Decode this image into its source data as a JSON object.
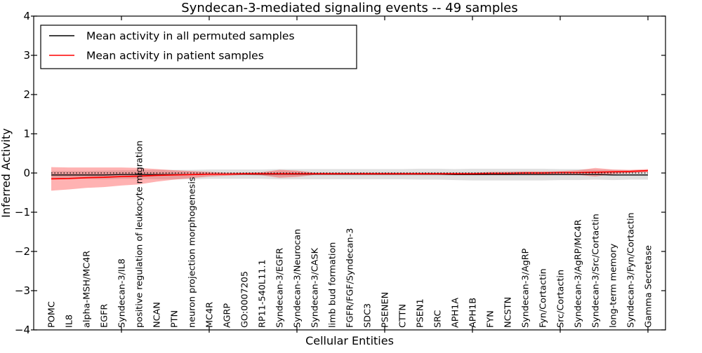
{
  "chart_data": {
    "type": "line",
    "title": "Syndecan-3-mediated signaling events -- 49 samples",
    "xlabel": "Cellular Entities",
    "ylabel": "Inferred Activity",
    "ylim": [
      -4,
      4
    ],
    "yticks": [
      -4,
      -3,
      -2,
      -1,
      0,
      1,
      2,
      3,
      4
    ],
    "xticks_at_category_index": [
      5,
      10,
      15,
      20,
      25,
      30,
      35
    ],
    "grid": false,
    "legend_position": "upper left",
    "zero_reference_line": {
      "y": 0,
      "style": "dotted",
      "color": "#000000"
    },
    "categories": [
      "POMC",
      "IL8",
      "alpha-MSH/MC4R",
      "EGFR",
      "Syndecan-3/IL8",
      "positive regulation of leukocyte migration",
      "NCAN",
      "PTN",
      "neuron projection morphogenesis",
      "MC4R",
      "AGRP",
      "GO:0007205",
      "RP11-540L11.1",
      "Syndecan-3/EGFR",
      "Syndecan-3/Neurocan",
      "Syndecan-3/CASK",
      "limb bud formation",
      "FGFR/FGF/Syndecan-3",
      "SDC3",
      "PSENEN",
      "CTTN",
      "PSEN1",
      "SRC",
      "APH1A",
      "APH1B",
      "FYN",
      "NCSTN",
      "Syndecan-3/AgRP",
      "Fyn/Cortactin",
      "Src/Cortactin",
      "Syndecan-3/AgRP/MC4R",
      "Syndecan-3/Src/Cortactin",
      "long-term memory",
      "Syndecan-3/Fyn/Cortactin",
      "Gamma Secretase"
    ],
    "series": [
      {
        "name": "Mean activity in all permuted samples",
        "color": "#000000",
        "line_width": 1.3,
        "band_color": "rgba(0,0,0,0.12)",
        "values": [
          -0.05,
          -0.05,
          -0.05,
          -0.05,
          -0.04,
          -0.04,
          -0.04,
          -0.04,
          -0.04,
          -0.03,
          -0.03,
          -0.03,
          -0.03,
          -0.03,
          -0.03,
          -0.03,
          -0.03,
          -0.03,
          -0.03,
          -0.03,
          -0.03,
          -0.03,
          -0.03,
          -0.04,
          -0.04,
          -0.04,
          -0.04,
          -0.04,
          -0.04,
          -0.04,
          -0.04,
          -0.04,
          -0.05,
          -0.05,
          -0.05
        ],
        "band_halfwidth": [
          0.1,
          0.1,
          0.1,
          0.11,
          0.11,
          0.11,
          0.12,
          0.12,
          0.12,
          0.12,
          0.12,
          0.12,
          0.12,
          0.13,
          0.13,
          0.13,
          0.13,
          0.13,
          0.13,
          0.13,
          0.13,
          0.14,
          0.14,
          0.14,
          0.15,
          0.15,
          0.15,
          0.15,
          0.15,
          0.14,
          0.14,
          0.13,
          0.13,
          0.12,
          0.12
        ]
      },
      {
        "name": "Mean activity in patient samples",
        "color": "#ff0000",
        "line_width": 1.7,
        "band_color": "rgba(255,0,0,0.30)",
        "values": [
          -0.15,
          -0.14,
          -0.12,
          -0.11,
          -0.09,
          -0.08,
          -0.06,
          -0.05,
          -0.04,
          -0.03,
          -0.03,
          -0.02,
          -0.02,
          -0.02,
          -0.02,
          -0.02,
          -0.02,
          -0.02,
          -0.02,
          -0.02,
          -0.02,
          -0.02,
          -0.02,
          -0.02,
          -0.02,
          -0.01,
          -0.01,
          0.0,
          0.0,
          0.01,
          0.01,
          0.02,
          0.03,
          0.04,
          0.06
        ],
        "band_halfwidth": [
          0.3,
          0.28,
          0.26,
          0.25,
          0.23,
          0.21,
          0.16,
          0.12,
          0.09,
          0.06,
          0.04,
          0.03,
          0.04,
          0.1,
          0.08,
          0.03,
          0.03,
          0.03,
          0.03,
          0.03,
          0.03,
          0.03,
          0.03,
          0.03,
          0.03,
          0.035,
          0.04,
          0.04,
          0.04,
          0.04,
          0.06,
          0.11,
          0.06,
          0.04,
          0.04
        ]
      }
    ]
  },
  "colors": {
    "background": "#ffffff",
    "axis": "#000000",
    "permuted_line": "#000000",
    "patient_line": "#ff0000"
  }
}
